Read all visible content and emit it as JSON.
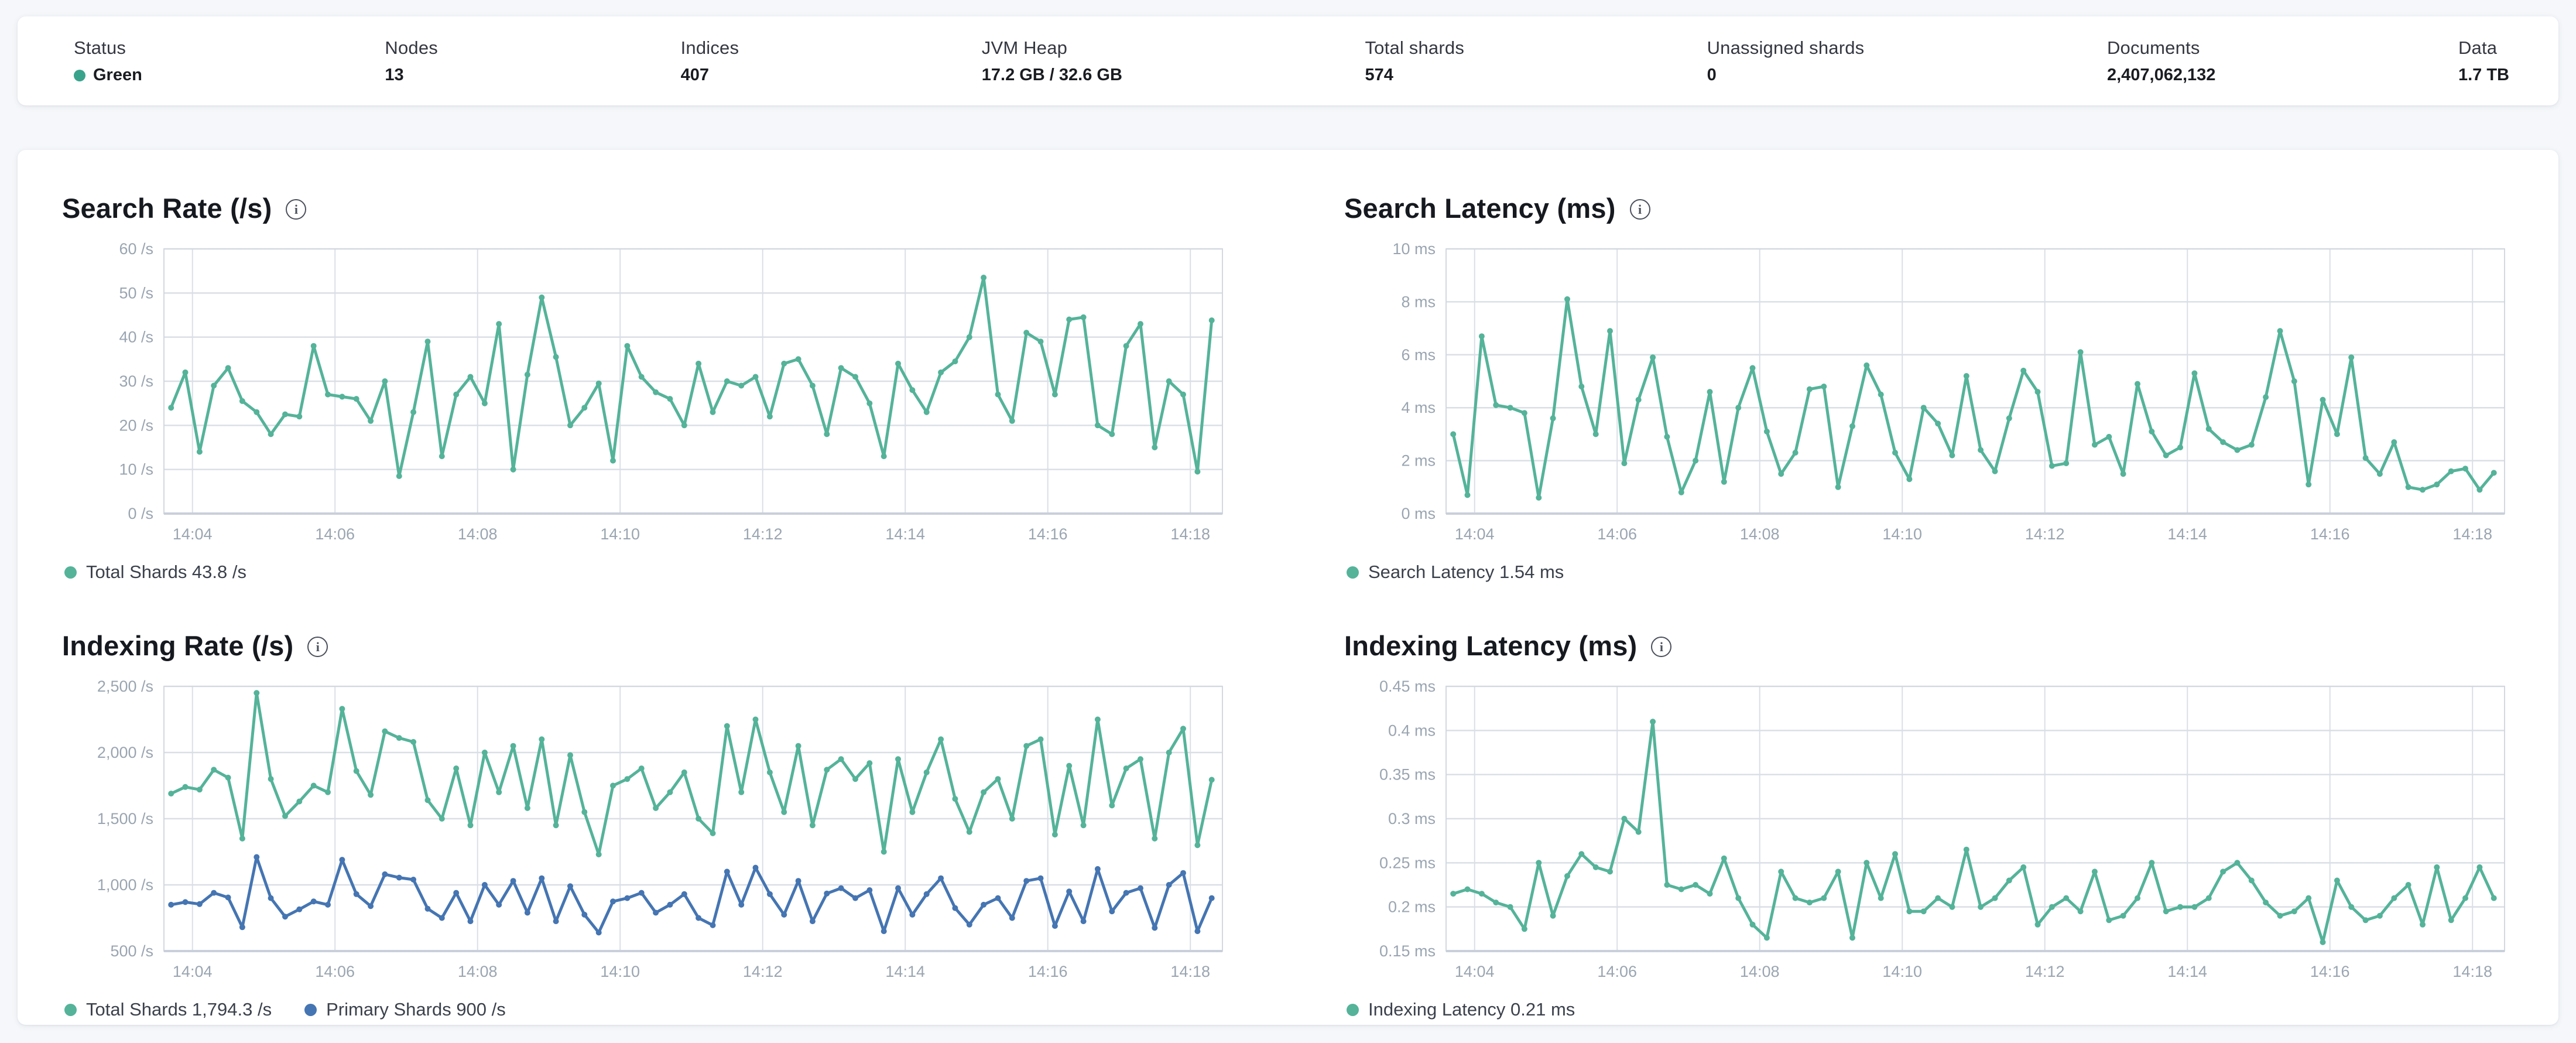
{
  "colors": {
    "teal": "#54b399",
    "blue": "#4575b2",
    "status_green_dot": "#3aa38c",
    "grid": "#dadfe6",
    "plot_border": "#d3d8e0",
    "axis_bottom": "#c9d0da",
    "tick_text": "#9aa5b1"
  },
  "overview": {
    "stats": [
      {
        "label": "Status",
        "value": "Green",
        "dot": true
      },
      {
        "label": "Nodes",
        "value": "13"
      },
      {
        "label": "Indices",
        "value": "407"
      },
      {
        "label": "JVM Heap",
        "value": "17.2 GB / 32.6 GB"
      },
      {
        "label": "Total shards",
        "value": "574"
      },
      {
        "label": "Unassigned shards",
        "value": "0"
      },
      {
        "label": "Documents",
        "value": "2,407,062,132"
      },
      {
        "label": "Data",
        "value": "1.7 TB"
      }
    ]
  },
  "chart_data": [
    {
      "type": "line",
      "title": "Search Rate (/s)",
      "info_icon": "i",
      "grid": true,
      "legend_position": "bottom",
      "ylim": [
        0,
        60
      ],
      "y_tick_values": [
        0,
        10,
        20,
        30,
        40,
        50,
        60
      ],
      "y_tick_labels": [
        "0 /s",
        "10 /s",
        "20 /s",
        "30 /s",
        "40 /s",
        "50 /s",
        "60 /s"
      ],
      "x_range_min": [
        203.6,
        218.45
      ],
      "x_tick_values": [
        204,
        206,
        208,
        210,
        212,
        214,
        216,
        218
      ],
      "x_tick_labels": [
        "14:04",
        "14:06",
        "14:08",
        "14:10",
        "14:12",
        "14:14",
        "14:16",
        "14:18"
      ],
      "x_start_min": 203.7,
      "x_step_min": 0.2,
      "series": [
        {
          "name": "Total Shards",
          "legend": "Total Shards 43.8 /s",
          "color_key": "teal",
          "values": [
            24,
            32,
            14,
            29,
            33,
            25.5,
            23,
            18,
            22.5,
            22,
            38,
            27,
            26.5,
            26,
            21,
            30,
            8.5,
            23,
            39,
            13,
            27,
            31,
            25,
            43,
            10,
            31.5,
            49,
            35.5,
            20,
            24,
            29.5,
            12,
            38,
            31,
            27.5,
            26,
            20,
            34,
            23,
            30,
            29,
            31,
            22,
            34,
            35,
            29,
            18,
            33,
            31,
            25,
            13,
            34,
            28,
            23,
            32,
            34.5,
            40,
            53.5,
            27,
            21,
            41,
            39,
            27,
            44,
            44.5,
            20,
            18,
            38,
            43,
            15,
            30,
            27,
            9.5,
            43.8
          ]
        }
      ]
    },
    {
      "type": "line",
      "title": "Search Latency (ms)",
      "info_icon": "i",
      "grid": true,
      "legend_position": "bottom",
      "ylim": [
        0,
        10
      ],
      "y_tick_values": [
        0,
        2,
        4,
        6,
        8,
        10
      ],
      "y_tick_labels": [
        "0 ms",
        "2 ms",
        "4 ms",
        "6 ms",
        "8 ms",
        "10 ms"
      ],
      "x_range_min": [
        203.6,
        218.45
      ],
      "x_tick_values": [
        204,
        206,
        208,
        210,
        212,
        214,
        216,
        218
      ],
      "x_tick_labels": [
        "14:04",
        "14:06",
        "14:08",
        "14:10",
        "14:12",
        "14:14",
        "14:16",
        "14:18"
      ],
      "x_start_min": 203.7,
      "x_step_min": 0.2,
      "series": [
        {
          "name": "Search Latency",
          "legend": "Search Latency 1.54 ms",
          "color_key": "teal",
          "values": [
            3.0,
            0.7,
            6.7,
            4.1,
            4.0,
            3.8,
            0.6,
            3.6,
            8.1,
            4.8,
            3.0,
            6.9,
            1.9,
            4.3,
            5.9,
            2.9,
            0.8,
            2.0,
            4.6,
            1.2,
            4.0,
            5.5,
            3.1,
            1.5,
            2.3,
            4.7,
            4.8,
            1.0,
            3.3,
            5.6,
            4.5,
            2.3,
            1.3,
            4.0,
            3.4,
            2.2,
            5.2,
            2.4,
            1.6,
            3.6,
            5.4,
            4.6,
            1.8,
            1.9,
            6.1,
            2.6,
            2.9,
            1.5,
            4.9,
            3.1,
            2.2,
            2.5,
            5.3,
            3.2,
            2.7,
            2.4,
            2.6,
            4.4,
            6.9,
            5.0,
            1.1,
            4.3,
            3.0,
            5.9,
            2.1,
            1.5,
            2.7,
            1.0,
            0.9,
            1.1,
            1.6,
            1.7,
            0.9,
            1.54
          ]
        }
      ]
    },
    {
      "type": "line",
      "title": "Indexing Rate (/s)",
      "info_icon": "i",
      "grid": true,
      "legend_position": "bottom",
      "ylim": [
        500,
        2500
      ],
      "y_tick_values": [
        500,
        1000,
        1500,
        2000,
        2500
      ],
      "y_tick_labels": [
        "500 /s",
        "1,000 /s",
        "1,500 /s",
        "2,000 /s",
        "2,500 /s"
      ],
      "x_range_min": [
        203.6,
        218.45
      ],
      "x_tick_values": [
        204,
        206,
        208,
        210,
        212,
        214,
        216,
        218
      ],
      "x_tick_labels": [
        "14:04",
        "14:06",
        "14:08",
        "14:10",
        "14:12",
        "14:14",
        "14:16",
        "14:18"
      ],
      "x_start_min": 203.7,
      "x_step_min": 0.2,
      "series": [
        {
          "name": "Total Shards",
          "legend": "Total Shards 1,794.3 /s",
          "color_key": "teal",
          "values": [
            1690,
            1740,
            1720,
            1870,
            1810,
            1350,
            2450,
            1800,
            1520,
            1630,
            1750,
            1700,
            2330,
            1860,
            1680,
            2160,
            2110,
            2080,
            1640,
            1500,
            1880,
            1450,
            2000,
            1700,
            2050,
            1580,
            2100,
            1450,
            1980,
            1550,
            1230,
            1750,
            1800,
            1880,
            1580,
            1700,
            1850,
            1500,
            1390,
            2200,
            1700,
            2250,
            1850,
            1550,
            2050,
            1450,
            1870,
            1950,
            1800,
            1920,
            1250,
            1950,
            1550,
            1850,
            2100,
            1650,
            1400,
            1700,
            1800,
            1500,
            2050,
            2100,
            1380,
            1900,
            1450,
            2250,
            1600,
            1880,
            1950,
            1350,
            2000,
            2180,
            1300,
            1794.3
          ]
        },
        {
          "name": "Primary Shards",
          "legend": "Primary Shards 900 /s",
          "color_key": "blue",
          "values": [
            850,
            870,
            855,
            940,
            905,
            680,
            1210,
            900,
            760,
            815,
            875,
            850,
            1190,
            930,
            840,
            1080,
            1055,
            1040,
            820,
            750,
            940,
            725,
            1000,
            850,
            1030,
            790,
            1050,
            725,
            990,
            775,
            640,
            875,
            900,
            940,
            790,
            850,
            930,
            750,
            695,
            1100,
            850,
            1130,
            930,
            775,
            1030,
            725,
            935,
            975,
            900,
            960,
            650,
            975,
            775,
            930,
            1050,
            825,
            700,
            850,
            900,
            750,
            1030,
            1050,
            690,
            950,
            725,
            1120,
            800,
            940,
            975,
            675,
            1000,
            1090,
            650,
            900
          ]
        }
      ]
    },
    {
      "type": "line",
      "title": "Indexing Latency (ms)",
      "info_icon": "i",
      "grid": true,
      "legend_position": "bottom",
      "ylim": [
        0.15,
        0.45
      ],
      "y_tick_values": [
        0.15,
        0.2,
        0.25,
        0.3,
        0.35,
        0.4,
        0.45
      ],
      "y_tick_labels": [
        "0.15 ms",
        "0.2 ms",
        "0.25 ms",
        "0.3 ms",
        "0.35 ms",
        "0.4 ms",
        "0.45 ms"
      ],
      "x_range_min": [
        203.6,
        218.45
      ],
      "x_tick_values": [
        204,
        206,
        208,
        210,
        212,
        214,
        216,
        218
      ],
      "x_tick_labels": [
        "14:04",
        "14:06",
        "14:08",
        "14:10",
        "14:12",
        "14:14",
        "14:16",
        "14:18"
      ],
      "x_start_min": 203.7,
      "x_step_min": 0.2,
      "series": [
        {
          "name": "Indexing Latency",
          "legend": "Indexing Latency 0.21 ms",
          "color_key": "teal",
          "values": [
            0.215,
            0.22,
            0.215,
            0.205,
            0.2,
            0.175,
            0.25,
            0.19,
            0.235,
            0.26,
            0.245,
            0.24,
            0.3,
            0.285,
            0.41,
            0.225,
            0.22,
            0.225,
            0.215,
            0.255,
            0.21,
            0.18,
            0.165,
            0.24,
            0.21,
            0.205,
            0.21,
            0.24,
            0.165,
            0.25,
            0.21,
            0.26,
            0.195,
            0.195,
            0.21,
            0.2,
            0.265,
            0.2,
            0.21,
            0.23,
            0.245,
            0.18,
            0.2,
            0.21,
            0.195,
            0.24,
            0.185,
            0.19,
            0.21,
            0.25,
            0.195,
            0.2,
            0.2,
            0.21,
            0.24,
            0.25,
            0.23,
            0.205,
            0.19,
            0.195,
            0.21,
            0.16,
            0.23,
            0.2,
            0.185,
            0.19,
            0.21,
            0.225,
            0.18,
            0.245,
            0.185,
            0.21,
            0.245,
            0.21
          ]
        }
      ]
    }
  ]
}
